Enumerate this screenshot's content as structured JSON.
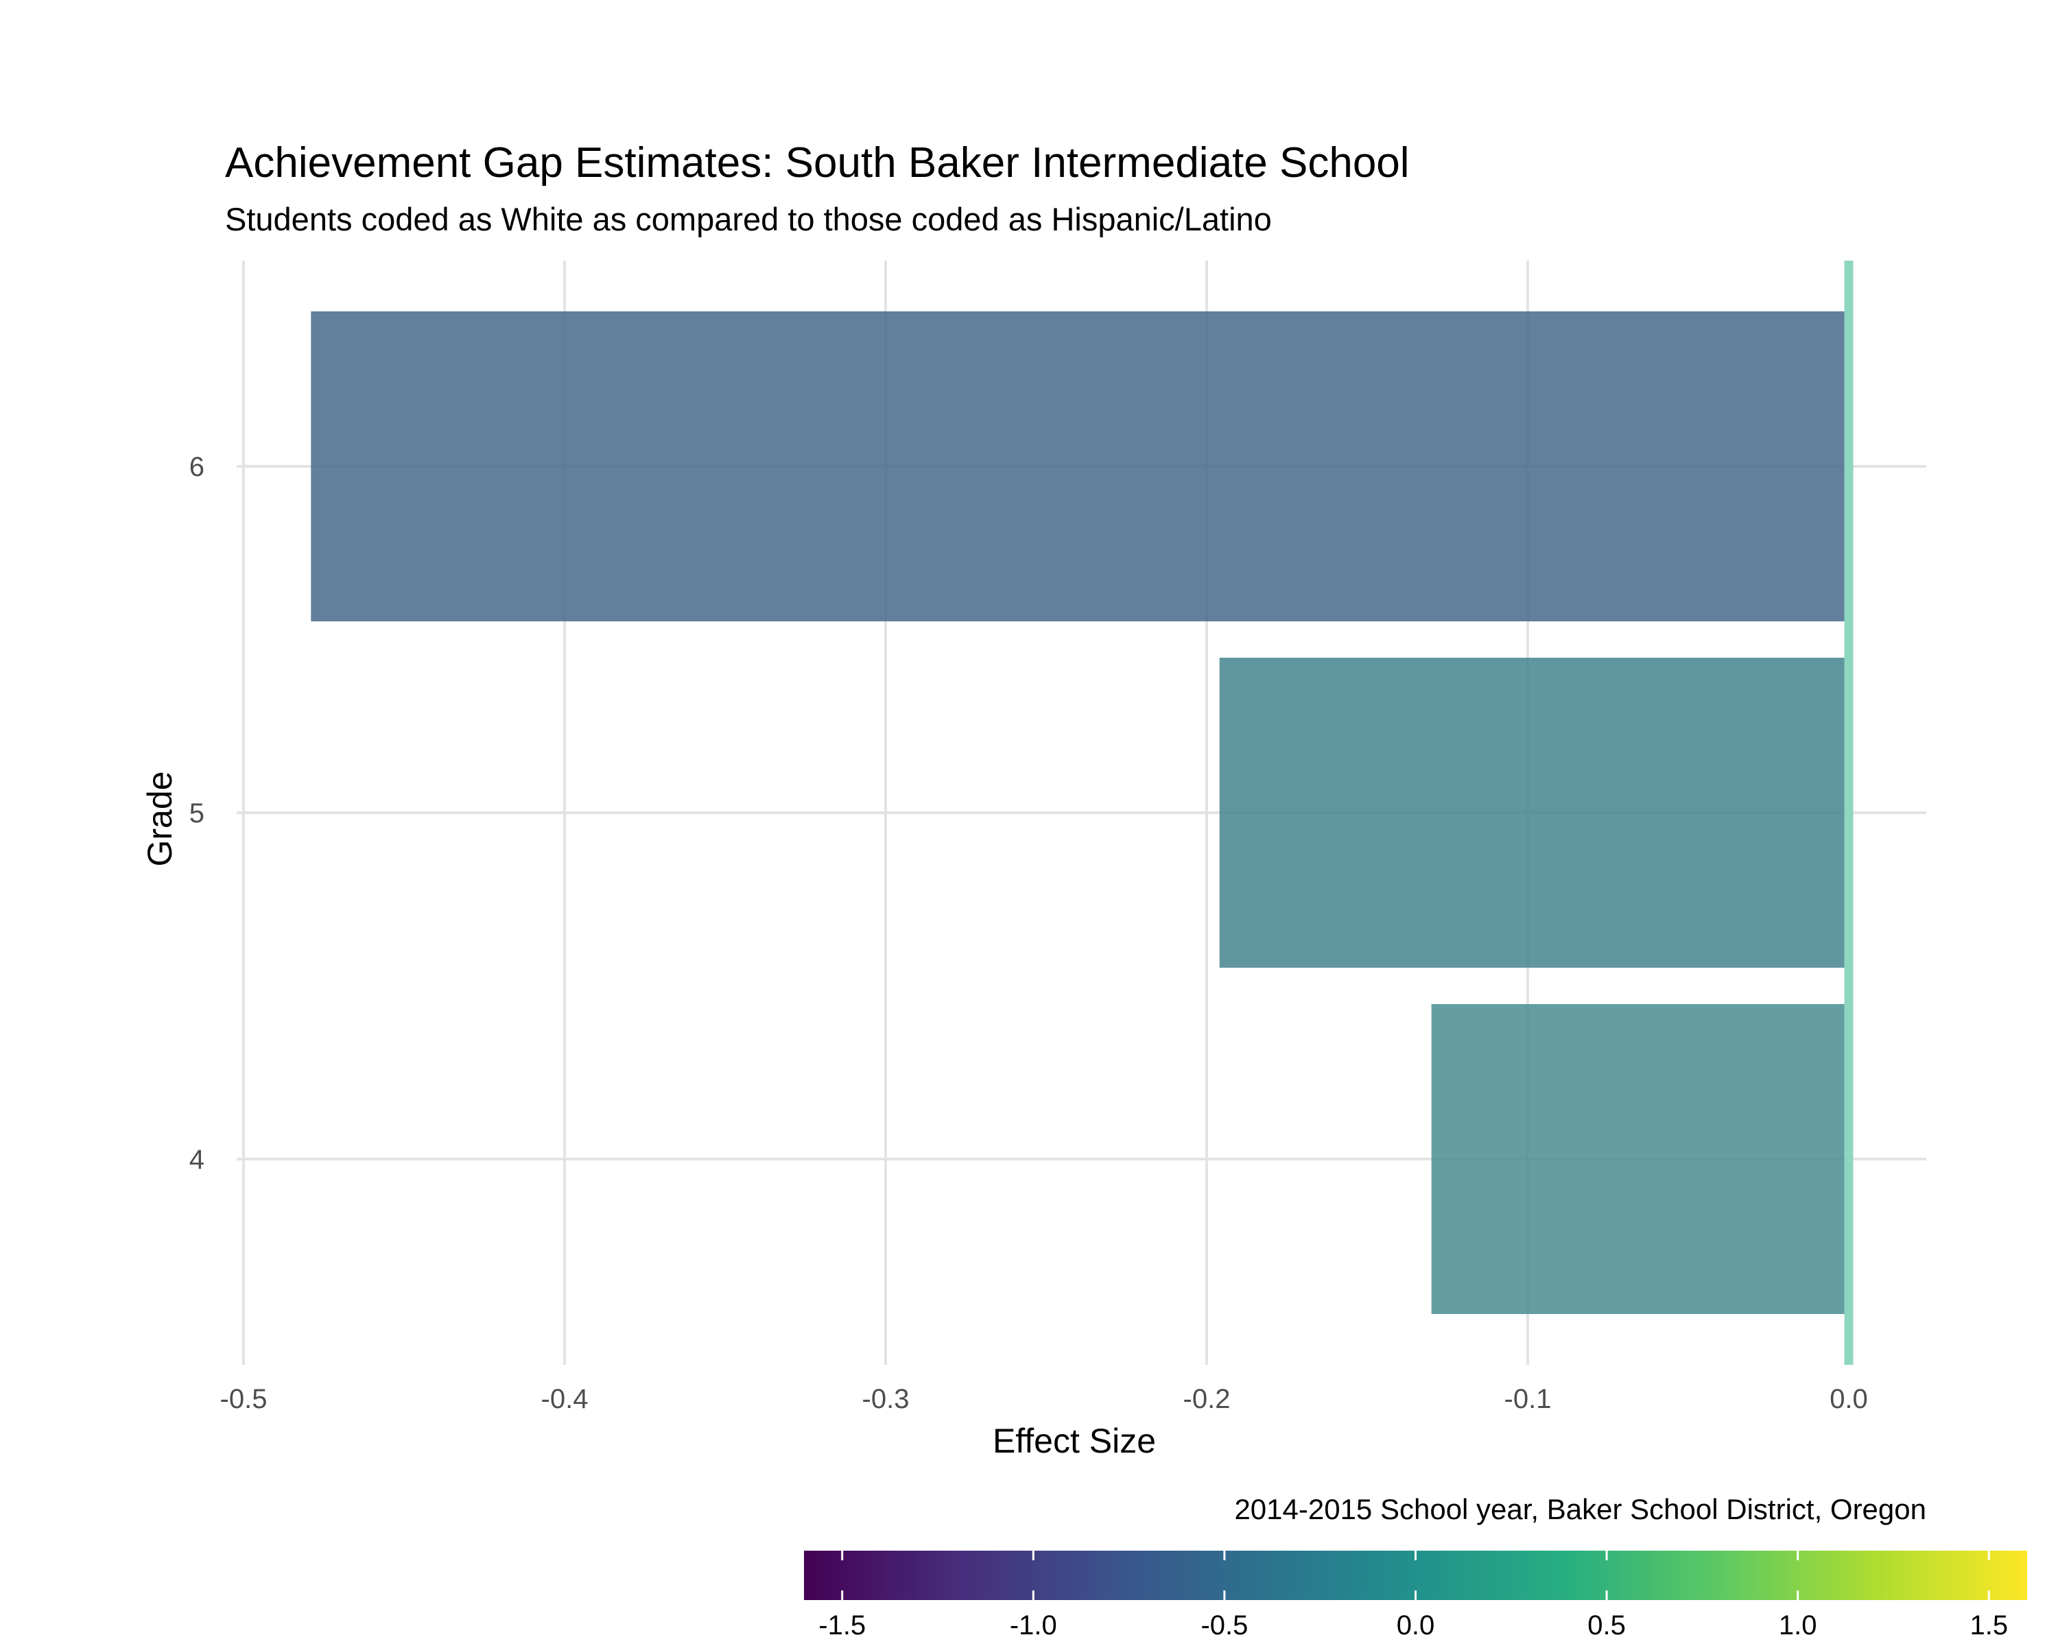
{
  "chart_data": {
    "type": "bar",
    "orientation": "horizontal",
    "title": "Achievement Gap Estimates: South Baker Intermediate School",
    "subtitle": "Students coded as White as compared to those coded as Hispanic/Latino",
    "caption": "2014-2015 School year, Baker School District, Oregon",
    "xlabel": "Effect Size",
    "ylabel": "Grade",
    "categories": [
      "4",
      "5",
      "6"
    ],
    "values": [
      -0.13,
      -0.196,
      -0.479
    ],
    "xlim": [
      -0.5,
      0.025
    ],
    "x_ticks": [
      -0.5,
      -0.4,
      -0.3,
      -0.2,
      -0.1,
      0.0
    ],
    "x_tick_labels": [
      "-0.5",
      "-0.4",
      "-0.3",
      "-0.2",
      "-0.1",
      "0.0"
    ],
    "reference_line": 0,
    "reference_line_color": "#8fd6c1",
    "bar_colors": [
      "#4a8d92",
      "#44848f",
      "#466a8a"
    ],
    "bar_opacity": 0.85,
    "grid": true,
    "grid_color": "#e3e3e3",
    "legend": {
      "type": "colorbar",
      "position": "bottom-right",
      "palette": "viridis",
      "range": [
        -1.6,
        1.6
      ],
      "ticks": [
        -1.5,
        -1.0,
        -0.5,
        0.0,
        0.5,
        1.0,
        1.5
      ],
      "tick_labels": [
        "-1.5",
        "-1.0",
        "-0.5",
        "0.0",
        "0.5",
        "1.0",
        "1.5"
      ]
    }
  }
}
